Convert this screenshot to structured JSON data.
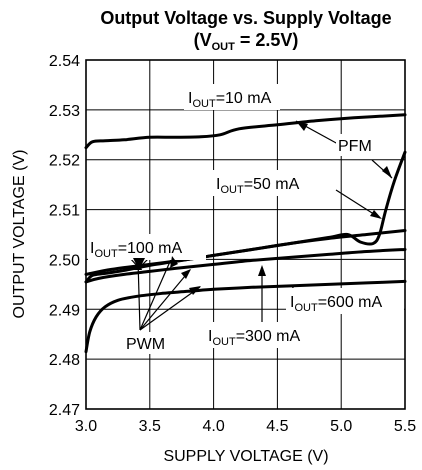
{
  "chart_data": {
    "type": "line",
    "title_main": "Output Voltage vs. Supply Voltage",
    "title_sub": {
      "pre": "(V",
      "sub": "OUT",
      "post": " = 2.5V)"
    },
    "xlabel": "SUPPLY VOLTAGE (V)",
    "ylabel": "OUTPUT VOLTAGE (V)",
    "xlim": [
      3.0,
      5.5
    ],
    "ylim": [
      2.47,
      2.54
    ],
    "x_ticks": [
      "3.0",
      "3.5",
      "4.0",
      "4.5",
      "5.0",
      "5.5"
    ],
    "y_ticks": [
      "2.54",
      "2.53",
      "2.52",
      "2.51",
      "2.50",
      "2.49",
      "2.48",
      "2.47"
    ],
    "grid": true,
    "series": [
      {
        "name": "IOUT=10 mA",
        "x": [
          3.0,
          3.05,
          3.15,
          3.3,
          3.5,
          3.7,
          3.9,
          4.05,
          4.2,
          4.5,
          4.8,
          5.1,
          5.3,
          5.5
        ],
        "y": [
          2.5224,
          2.5236,
          2.5238,
          2.524,
          2.5245,
          2.5245,
          2.5246,
          2.525,
          2.5262,
          2.527,
          2.5278,
          2.5284,
          2.5287,
          2.529
        ]
      },
      {
        "name": "IOUT=50 mA",
        "x": [
          3.0,
          3.2,
          3.5,
          3.8,
          4.0,
          4.3,
          4.6,
          4.9,
          5.05,
          5.15,
          5.25,
          5.3,
          5.35,
          5.42,
          5.5
        ],
        "y": [
          2.497,
          2.498,
          2.499,
          2.5,
          2.5008,
          2.502,
          2.5032,
          2.5044,
          2.505,
          2.5035,
          2.5032,
          2.505,
          2.51,
          2.516,
          2.5215
        ]
      },
      {
        "name": "IOUT=100 mA",
        "x": [
          3.0,
          3.05,
          3.15,
          3.3,
          3.5,
          3.8,
          4.0,
          4.3,
          4.6,
          4.9,
          5.2,
          5.5
        ],
        "y": [
          2.4955,
          2.4968,
          2.4972,
          2.4978,
          2.4988,
          2.5,
          2.5008,
          2.502,
          2.5032,
          2.5042,
          2.505,
          2.5058
        ]
      },
      {
        "name": "IOUT=300 mA",
        "x": [
          3.0,
          3.1,
          3.3,
          3.5,
          3.7,
          4.0,
          4.3,
          4.6,
          4.9,
          5.2,
          5.5
        ],
        "y": [
          2.4955,
          2.4962,
          2.497,
          2.4976,
          2.4982,
          2.499,
          2.4998,
          2.5004,
          2.501,
          2.5016,
          2.502
        ]
      },
      {
        "name": "IOUT=600 mA",
        "x": [
          3.0,
          3.03,
          3.08,
          3.15,
          3.25,
          3.4,
          3.6,
          3.8,
          4.0,
          4.3,
          4.6,
          4.9,
          5.2,
          5.5
        ],
        "y": [
          2.4815,
          2.4855,
          2.4885,
          2.4905,
          2.4918,
          2.4926,
          2.4932,
          2.4936,
          2.494,
          2.4944,
          2.4947,
          2.495,
          2.4953,
          2.4956
        ]
      }
    ],
    "annotations": {
      "i10": {
        "pre": "I",
        "sub": "OUT",
        "post": "=10 mA"
      },
      "i50": {
        "pre": "I",
        "sub": "OUT",
        "post": "=50 mA"
      },
      "i100": {
        "pre": "I",
        "sub": "OUT",
        "post": "=100 mA"
      },
      "i300": {
        "pre": "I",
        "sub": "OUT",
        "post": "=300 mA"
      },
      "i600": {
        "pre": "I",
        "sub": "OUT",
        "post": "=600 mA"
      },
      "pfm": "PFM",
      "pwm": "PWM"
    }
  }
}
